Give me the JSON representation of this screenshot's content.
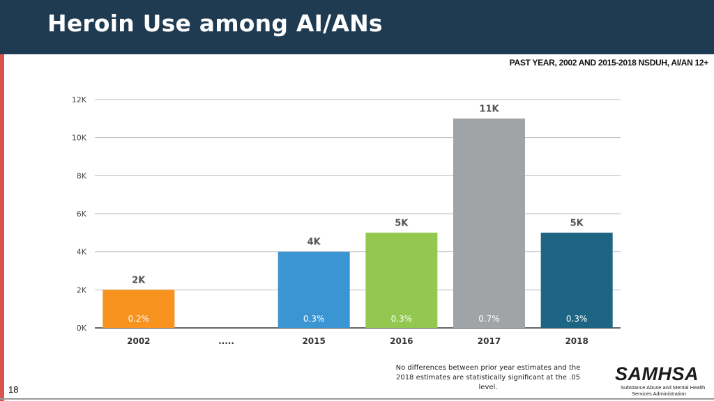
{
  "slide": {
    "title": "Heroin Use among AI/ANs",
    "subtitle": "PAST YEAR, 2002 AND 2015-2018  NSDUH, AI/AN 12+",
    "note": "No differences between prior year estimates and the 2018 estimates are statistically significant at the .05 level.",
    "page_number": "18",
    "logo": {
      "word": "SAMHSA",
      "line1": "Substance Abuse and Mental Health",
      "line2": "Services Administration"
    },
    "colors": {
      "header": "#1f3b52",
      "stripe": "#d9534f"
    }
  },
  "chart_data": {
    "type": "bar",
    "categories": [
      "2002",
      ".....",
      "2015",
      "2016",
      "2017",
      "2018"
    ],
    "values": [
      2,
      null,
      4,
      5,
      11,
      5
    ],
    "value_labels": [
      "2K",
      "",
      "4K",
      "5K",
      "11K",
      "5K"
    ],
    "percent_labels": [
      "0.2%",
      "",
      "0.3%",
      "0.3%",
      "0.7%",
      "0.3%"
    ],
    "colors": [
      "#f7931e",
      null,
      "#3b95d3",
      "#92c84f",
      "#a0a4a7",
      "#1d6582"
    ],
    "y_ticks": [
      "0K",
      "2K",
      "4K",
      "6K",
      "8K",
      "10K",
      "12K"
    ],
    "ylim": [
      0,
      12
    ],
    "grid": true,
    "title": "",
    "xlabel": "",
    "ylabel": ""
  }
}
